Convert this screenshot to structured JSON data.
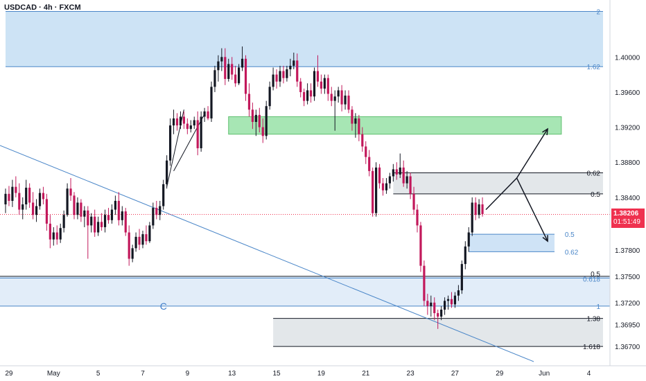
{
  "header": {
    "symbol_line": "USDCAD · 4h · FXCM"
  },
  "chart_data": {
    "type": "candlestick",
    "symbol": "USDCAD",
    "timeframe": "4h",
    "source": "FXCM",
    "last_price": "1.38206",
    "countdown": "01:51:49",
    "colors": {
      "up": "#131722",
      "down": "#c2185b",
      "trend": "#4a86c8",
      "last_price": "#ef314f"
    },
    "ylim": [
      1.3648,
      1.4065
    ],
    "y_ticks": [
      {
        "value": 1.4,
        "label": "1.40000"
      },
      {
        "value": 1.396,
        "label": "1.39600"
      },
      {
        "value": 1.392,
        "label": "1.39200"
      },
      {
        "value": 1.388,
        "label": "1.38800"
      },
      {
        "value": 1.384,
        "label": "1.38400"
      },
      {
        "value": 1.378,
        "label": "1.37800"
      },
      {
        "value": 1.375,
        "label": "1.37500"
      },
      {
        "value": 1.372,
        "label": "1.37200"
      },
      {
        "value": 1.3695,
        "label": "1.36950"
      },
      {
        "value": 1.367,
        "label": "1.36700"
      }
    ],
    "x_ticks": [
      {
        "bar": 1,
        "label": "29"
      },
      {
        "bar": 14,
        "label": "May"
      },
      {
        "bar": 27,
        "label": "5"
      },
      {
        "bar": 40,
        "label": "7"
      },
      {
        "bar": 53,
        "label": "9"
      },
      {
        "bar": 66,
        "label": "13"
      },
      {
        "bar": 79,
        "label": "15"
      },
      {
        "bar": 92,
        "label": "19"
      },
      {
        "bar": 105,
        "label": "21"
      },
      {
        "bar": 118,
        "label": "23"
      },
      {
        "bar": 131,
        "label": "27"
      },
      {
        "bar": 144,
        "label": "29"
      },
      {
        "bar": 157,
        "label": "Jun"
      },
      {
        "bar": 170,
        "label": "4"
      }
    ],
    "candles": [
      [
        1.3832,
        1.385,
        1.3822,
        1.3844
      ],
      [
        1.3844,
        1.3853,
        1.383,
        1.3836
      ],
      [
        1.3836,
        1.386,
        1.3829,
        1.3852
      ],
      [
        1.3852,
        1.3864,
        1.384,
        1.3845
      ],
      [
        1.3845,
        1.3856,
        1.382,
        1.3826
      ],
      [
        1.3826,
        1.384,
        1.3815,
        1.3832
      ],
      [
        1.3832,
        1.386,
        1.3826,
        1.3851
      ],
      [
        1.3851,
        1.3856,
        1.3828,
        1.3834
      ],
      [
        1.3834,
        1.3846,
        1.3815,
        1.382
      ],
      [
        1.382,
        1.3838,
        1.3812,
        1.383
      ],
      [
        1.383,
        1.385,
        1.3826,
        1.3845
      ],
      [
        1.3845,
        1.3852,
        1.3832,
        1.3838
      ],
      [
        1.3838,
        1.3844,
        1.3802,
        1.381
      ],
      [
        1.381,
        1.382,
        1.3782,
        1.3792
      ],
      [
        1.3792,
        1.3806,
        1.3785,
        1.38
      ],
      [
        1.38,
        1.3808,
        1.3786,
        1.3792
      ],
      [
        1.3792,
        1.381,
        1.3788,
        1.3805
      ],
      [
        1.3805,
        1.3825,
        1.38,
        1.382
      ],
      [
        1.382,
        1.3856,
        1.3818,
        1.385
      ],
      [
        1.385,
        1.3862,
        1.3836,
        1.3842
      ],
      [
        1.3842,
        1.3846,
        1.3815,
        1.382
      ],
      [
        1.382,
        1.384,
        1.3815,
        1.3834
      ],
      [
        1.3834,
        1.3838,
        1.3812,
        1.3818
      ],
      [
        1.3818,
        1.383,
        1.3806,
        1.3825
      ],
      [
        1.3825,
        1.383,
        1.377,
        1.3808
      ],
      [
        1.3808,
        1.3822,
        1.38,
        1.3818
      ],
      [
        1.3818,
        1.3826,
        1.3795,
        1.38
      ],
      [
        1.38,
        1.3818,
        1.3796,
        1.3812
      ],
      [
        1.3812,
        1.3822,
        1.3802,
        1.3806
      ],
      [
        1.3806,
        1.3826,
        1.38,
        1.382
      ],
      [
        1.382,
        1.3828,
        1.381,
        1.3814
      ],
      [
        1.3814,
        1.3832,
        1.381,
        1.3826
      ],
      [
        1.3826,
        1.3842,
        1.382,
        1.3836
      ],
      [
        1.3836,
        1.3846,
        1.3808,
        1.3814
      ],
      [
        1.3814,
        1.383,
        1.3808,
        1.3824
      ],
      [
        1.3824,
        1.3828,
        1.3796,
        1.38
      ],
      [
        1.38,
        1.3808,
        1.3762,
        1.377
      ],
      [
        1.377,
        1.3786,
        1.3766,
        1.3782
      ],
      [
        1.3782,
        1.38,
        1.3778,
        1.3795
      ],
      [
        1.3795,
        1.3804,
        1.378,
        1.3786
      ],
      [
        1.3786,
        1.3802,
        1.3782,
        1.3798
      ],
      [
        1.3798,
        1.3808,
        1.3786,
        1.379
      ],
      [
        1.379,
        1.3812,
        1.3788,
        1.3808
      ],
      [
        1.3808,
        1.3834,
        1.3804,
        1.3828
      ],
      [
        1.3828,
        1.3836,
        1.3815,
        1.382
      ],
      [
        1.382,
        1.3836,
        1.3814,
        1.383
      ],
      [
        1.383,
        1.386,
        1.3826,
        1.3855
      ],
      [
        1.3855,
        1.3888,
        1.385,
        1.3882
      ],
      [
        1.3882,
        1.393,
        1.3876,
        1.3922
      ],
      [
        1.3922,
        1.394,
        1.3912,
        1.393
      ],
      [
        1.393,
        1.3936,
        1.3916,
        1.3922
      ],
      [
        1.3922,
        1.3938,
        1.3918,
        1.3932
      ],
      [
        1.3932,
        1.3938,
        1.3918,
        1.3924
      ],
      [
        1.3924,
        1.393,
        1.3912,
        1.3918
      ],
      [
        1.3918,
        1.3928,
        1.3914,
        1.3922
      ],
      [
        1.3922,
        1.3932,
        1.3918,
        1.3928
      ],
      [
        1.3928,
        1.3938,
        1.3888,
        1.3896
      ],
      [
        1.3896,
        1.3938,
        1.3892,
        1.3932
      ],
      [
        1.3932,
        1.3942,
        1.3926,
        1.3938
      ],
      [
        1.3938,
        1.3944,
        1.3928,
        1.393
      ],
      [
        1.393,
        1.3972,
        1.3926,
        1.3966
      ],
      [
        1.3966,
        1.399,
        1.396,
        1.3985
      ],
      [
        1.3985,
        1.4002,
        1.3972,
        1.3995
      ],
      [
        1.3995,
        1.401,
        1.3984,
        1.4
      ],
      [
        1.4,
        1.401,
        1.3968,
        1.3975
      ],
      [
        1.3975,
        1.3998,
        1.3972,
        1.3992
      ],
      [
        1.3992,
        1.4,
        1.3974,
        1.398
      ],
      [
        1.398,
        1.399,
        1.3966,
        1.397
      ],
      [
        1.397,
        1.3992,
        1.3968,
        1.3988
      ],
      [
        1.3988,
        1.4012,
        1.3984,
        1.3998
      ],
      [
        1.3998,
        1.4002,
        1.395,
        1.3958
      ],
      [
        1.3958,
        1.397,
        1.3932,
        1.394
      ],
      [
        1.394,
        1.3948,
        1.3918,
        1.3926
      ],
      [
        1.3926,
        1.394,
        1.391,
        1.3934
      ],
      [
        1.3934,
        1.3942,
        1.3914,
        1.392
      ],
      [
        1.392,
        1.393,
        1.3902,
        1.391
      ],
      [
        1.391,
        1.395,
        1.3906,
        1.3944
      ],
      [
        1.3944,
        1.3972,
        1.394,
        1.3966
      ],
      [
        1.3966,
        1.3988,
        1.3962,
        1.398
      ],
      [
        1.398,
        1.3986,
        1.3964,
        1.3972
      ],
      [
        1.3972,
        1.399,
        1.3966,
        1.3984
      ],
      [
        1.3984,
        1.399,
        1.397,
        1.3976
      ],
      [
        1.3976,
        1.399,
        1.3972,
        1.3986
      ],
      [
        1.3986,
        1.3998,
        1.3978,
        1.399
      ],
      [
        1.399,
        1.4005,
        1.3986,
        1.3996
      ],
      [
        1.3996,
        1.4004,
        1.3966,
        1.3972
      ],
      [
        1.3972,
        1.3976,
        1.3954,
        1.396
      ],
      [
        1.396,
        1.3964,
        1.3944,
        1.395
      ],
      [
        1.395,
        1.397,
        1.3946,
        1.3962
      ],
      [
        1.3962,
        1.397,
        1.3948,
        1.3955
      ],
      [
        1.3955,
        1.3988,
        1.395,
        1.3984
      ],
      [
        1.3984,
        1.4002,
        1.3966,
        1.3972
      ],
      [
        1.3972,
        1.398,
        1.3958,
        1.3964
      ],
      [
        1.3964,
        1.398,
        1.3958,
        1.3976
      ],
      [
        1.3976,
        1.398,
        1.395,
        1.3958
      ],
      [
        1.3958,
        1.3966,
        1.3944,
        1.395
      ],
      [
        1.395,
        1.3962,
        1.3916,
        1.3955
      ],
      [
        1.3955,
        1.3966,
        1.3948,
        1.3962
      ],
      [
        1.3962,
        1.3968,
        1.3938,
        1.3946
      ],
      [
        1.3946,
        1.3962,
        1.394,
        1.3956
      ],
      [
        1.3956,
        1.3962,
        1.3936,
        1.394
      ],
      [
        1.394,
        1.3944,
        1.3916,
        1.3924
      ],
      [
        1.3924,
        1.3936,
        1.3908,
        1.393
      ],
      [
        1.393,
        1.3934,
        1.3904,
        1.3912
      ],
      [
        1.3912,
        1.392,
        1.3892,
        1.3898
      ],
      [
        1.3898,
        1.3904,
        1.3878,
        1.3886
      ],
      [
        1.3886,
        1.3894,
        1.3864,
        1.387
      ],
      [
        1.387,
        1.3874,
        1.3818,
        1.3822
      ],
      [
        1.3822,
        1.388,
        1.3818,
        1.3874
      ],
      [
        1.3874,
        1.3878,
        1.385,
        1.3856
      ],
      [
        1.3856,
        1.3862,
        1.3842,
        1.3848
      ],
      [
        1.3848,
        1.3862,
        1.3844,
        1.3856
      ],
      [
        1.3856,
        1.3868,
        1.385,
        1.3864
      ],
      [
        1.3864,
        1.3878,
        1.3858,
        1.3872
      ],
      [
        1.3872,
        1.388,
        1.386,
        1.3866
      ],
      [
        1.3866,
        1.389,
        1.3862,
        1.3874
      ],
      [
        1.3874,
        1.3882,
        1.3852,
        1.3856
      ],
      [
        1.3856,
        1.387,
        1.385,
        1.3864
      ],
      [
        1.3864,
        1.3868,
        1.3838,
        1.3844
      ],
      [
        1.3844,
        1.3852,
        1.382,
        1.3826
      ],
      [
        1.3826,
        1.3832,
        1.38,
        1.3808
      ],
      [
        1.3808,
        1.3812,
        1.3755,
        1.3762
      ],
      [
        1.3762,
        1.3768,
        1.3716,
        1.3722
      ],
      [
        1.3722,
        1.373,
        1.3706,
        1.3716
      ],
      [
        1.3716,
        1.3728,
        1.3704,
        1.372
      ],
      [
        1.372,
        1.3726,
        1.37,
        1.3708
      ],
      [
        1.3708,
        1.3712,
        1.369,
        1.3704
      ],
      [
        1.3704,
        1.3716,
        1.37,
        1.3712
      ],
      [
        1.3712,
        1.3726,
        1.3706,
        1.3722
      ],
      [
        1.3722,
        1.3728,
        1.3712,
        1.3724
      ],
      [
        1.3724,
        1.3732,
        1.3714,
        1.3718
      ],
      [
        1.3718,
        1.3732,
        1.3714,
        1.3728
      ],
      [
        1.3728,
        1.374,
        1.3722,
        1.3734
      ],
      [
        1.3734,
        1.3768,
        1.373,
        1.3764
      ],
      [
        1.3764,
        1.379,
        1.3758,
        1.3784
      ],
      [
        1.3784,
        1.3806,
        1.3778,
        1.38
      ],
      [
        1.38,
        1.384,
        1.3796,
        1.3834
      ],
      [
        1.3834,
        1.384,
        1.3814,
        1.382
      ],
      [
        1.382,
        1.3838,
        1.3816,
        1.3832
      ],
      [
        1.3832,
        1.384,
        1.3818,
        1.3821
      ]
    ],
    "drawings": {
      "fib_levels": [
        {
          "label": "2",
          "value": 1.4052,
          "color": "#4a86c8"
        },
        {
          "label": "1.62",
          "value": 1.3989,
          "color": "#4a86c8"
        },
        {
          "label": "0.62",
          "value": 1.3868,
          "color": "#131722"
        },
        {
          "label": "0.5",
          "value": 1.3844,
          "color": "#131722"
        },
        {
          "label": "0.5",
          "value": 1.3798,
          "color": "#4a86c8"
        },
        {
          "label": "0.62",
          "value": 1.3778,
          "color": "#4a86c8"
        },
        {
          "label": "0.5",
          "value": 1.375,
          "color": "#131722"
        },
        {
          "label": "0.618",
          "value": 1.3748,
          "color": "#4a86c8"
        },
        {
          "label": "1",
          "value": 1.3716,
          "color": "#4a86c8"
        },
        {
          "label": "1.38",
          "value": 1.3702,
          "color": "#131722"
        },
        {
          "label": "1.618",
          "value": 1.367,
          "color": "#131722"
        }
      ],
      "wave_label": "C"
    }
  }
}
